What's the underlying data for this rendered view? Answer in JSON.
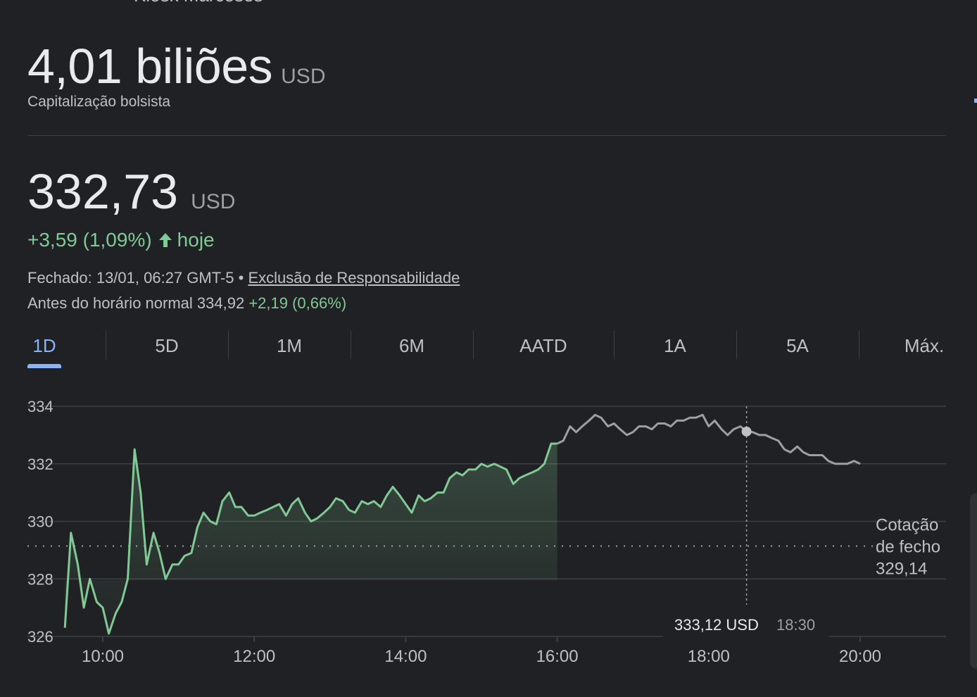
{
  "header": {
    "top_clipped_text": "Kiosk Marcoses"
  },
  "market_cap": {
    "value": "4,01 biliões",
    "unit": "USD",
    "label": "Capitalização bolsista"
  },
  "price": {
    "value": "332,73",
    "unit": "USD",
    "change": "+3,59 (1,09%)",
    "change_suffix": "hoje",
    "change_color": "#81c995",
    "closed_prefix": "Fechado: 13/01, 06:27 GMT-5 •",
    "disclaimer_link": "Exclusão de Responsabilidade",
    "premarket_label": "Antes do horário normal 334,92",
    "premarket_change": "+2,19 (0,66%)"
  },
  "tabs": [
    {
      "label": "1D",
      "active": true
    },
    {
      "label": "5D",
      "active": false
    },
    {
      "label": "1M",
      "active": false
    },
    {
      "label": "6M",
      "active": false
    },
    {
      "label": "AATD",
      "active": false
    },
    {
      "label": "1A",
      "active": false
    },
    {
      "label": "5A",
      "active": false
    },
    {
      "label": "Máx.",
      "active": false
    }
  ],
  "chart_data": {
    "type": "line",
    "x_tick_labels": [
      "10:00",
      "12:00",
      "14:00",
      "16:00",
      "18:00",
      "20:00"
    ],
    "y_ticks": [
      326,
      328,
      330,
      332,
      334
    ],
    "ylim": [
      326,
      334
    ],
    "xlim_hours": [
      9.5,
      21.2
    ],
    "grid": true,
    "reference_line": {
      "label": [
        "Cotação",
        "de fecho",
        "329,14"
      ],
      "value": 329.14
    },
    "tooltip": {
      "value": "333,12 USD",
      "time": "18:30",
      "x": 18.5,
      "y": 333.12
    },
    "colors": {
      "regular": "#81c995",
      "after_hours": "#9aa0a6",
      "grid": "#3c4043"
    },
    "series": [
      {
        "segment": "regular",
        "points": [
          [
            9.5,
            326.3
          ],
          [
            9.58,
            329.6
          ],
          [
            9.67,
            328.5
          ],
          [
            9.75,
            327.0
          ],
          [
            9.83,
            328.0
          ],
          [
            9.92,
            327.2
          ],
          [
            10.0,
            327.0
          ],
          [
            10.08,
            326.1
          ],
          [
            10.17,
            326.8
          ],
          [
            10.25,
            327.2
          ],
          [
            10.33,
            328.0
          ],
          [
            10.42,
            332.5
          ],
          [
            10.5,
            331.0
          ],
          [
            10.58,
            328.5
          ],
          [
            10.67,
            329.6
          ],
          [
            10.75,
            328.9
          ],
          [
            10.83,
            328.0
          ],
          [
            10.92,
            328.5
          ],
          [
            11.0,
            328.5
          ],
          [
            11.08,
            328.8
          ],
          [
            11.17,
            328.9
          ],
          [
            11.25,
            329.8
          ],
          [
            11.33,
            330.3
          ],
          [
            11.42,
            330.0
          ],
          [
            11.5,
            329.9
          ],
          [
            11.58,
            330.7
          ],
          [
            11.67,
            331.0
          ],
          [
            11.75,
            330.5
          ],
          [
            11.83,
            330.5
          ],
          [
            11.92,
            330.2
          ],
          [
            12.0,
            330.2
          ],
          [
            12.08,
            330.3
          ],
          [
            12.17,
            330.4
          ],
          [
            12.25,
            330.5
          ],
          [
            12.33,
            330.6
          ],
          [
            12.42,
            330.2
          ],
          [
            12.5,
            330.6
          ],
          [
            12.58,
            330.8
          ],
          [
            12.67,
            330.3
          ],
          [
            12.75,
            330.0
          ],
          [
            12.83,
            330.1
          ],
          [
            12.92,
            330.3
          ],
          [
            13.0,
            330.5
          ],
          [
            13.08,
            330.8
          ],
          [
            13.17,
            330.7
          ],
          [
            13.25,
            330.4
          ],
          [
            13.33,
            330.3
          ],
          [
            13.42,
            330.7
          ],
          [
            13.5,
            330.6
          ],
          [
            13.58,
            330.7
          ],
          [
            13.67,
            330.5
          ],
          [
            13.75,
            330.9
          ],
          [
            13.83,
            331.2
          ],
          [
            13.92,
            330.9
          ],
          [
            14.0,
            330.6
          ],
          [
            14.08,
            330.3
          ],
          [
            14.17,
            330.9
          ],
          [
            14.25,
            330.7
          ],
          [
            14.33,
            330.8
          ],
          [
            14.42,
            331.0
          ],
          [
            14.5,
            331.0
          ],
          [
            14.58,
            331.5
          ],
          [
            14.67,
            331.7
          ],
          [
            14.75,
            331.6
          ],
          [
            14.83,
            331.8
          ],
          [
            14.92,
            331.8
          ],
          [
            15.0,
            332.0
          ],
          [
            15.08,
            331.9
          ],
          [
            15.17,
            332.0
          ],
          [
            15.25,
            331.9
          ],
          [
            15.33,
            331.8
          ],
          [
            15.42,
            331.3
          ],
          [
            15.5,
            331.5
          ],
          [
            15.58,
            331.6
          ],
          [
            15.67,
            331.7
          ],
          [
            15.75,
            331.8
          ],
          [
            15.83,
            332.0
          ],
          [
            15.92,
            332.7
          ],
          [
            16.0,
            332.7
          ]
        ]
      },
      {
        "segment": "after_hours",
        "points": [
          [
            16.0,
            332.7
          ],
          [
            16.08,
            332.8
          ],
          [
            16.17,
            333.3
          ],
          [
            16.25,
            333.1
          ],
          [
            16.33,
            333.3
          ],
          [
            16.42,
            333.5
          ],
          [
            16.5,
            333.7
          ],
          [
            16.58,
            333.6
          ],
          [
            16.67,
            333.3
          ],
          [
            16.75,
            333.4
          ],
          [
            16.83,
            333.2
          ],
          [
            16.92,
            333.0
          ],
          [
            17.0,
            333.1
          ],
          [
            17.08,
            333.3
          ],
          [
            17.17,
            333.3
          ],
          [
            17.25,
            333.2
          ],
          [
            17.33,
            333.4
          ],
          [
            17.42,
            333.4
          ],
          [
            17.5,
            333.3
          ],
          [
            17.58,
            333.5
          ],
          [
            17.67,
            333.5
          ],
          [
            17.75,
            333.6
          ],
          [
            17.83,
            333.6
          ],
          [
            17.92,
            333.7
          ],
          [
            18.0,
            333.3
          ],
          [
            18.08,
            333.5
          ],
          [
            18.17,
            333.2
          ],
          [
            18.25,
            333.0
          ],
          [
            18.33,
            333.2
          ],
          [
            18.42,
            333.3
          ],
          [
            18.5,
            333.12
          ],
          [
            18.58,
            333.1
          ],
          [
            18.67,
            333.0
          ],
          [
            18.75,
            333.0
          ],
          [
            18.83,
            332.9
          ],
          [
            18.92,
            332.8
          ],
          [
            19.0,
            332.5
          ],
          [
            19.08,
            332.4
          ],
          [
            19.17,
            332.6
          ],
          [
            19.25,
            332.4
          ],
          [
            19.33,
            332.3
          ],
          [
            19.42,
            332.3
          ],
          [
            19.5,
            332.3
          ],
          [
            19.58,
            332.1
          ],
          [
            19.67,
            332.0
          ],
          [
            19.75,
            332.0
          ],
          [
            19.83,
            332.0
          ],
          [
            19.92,
            332.1
          ],
          [
            20.0,
            332.0
          ]
        ]
      }
    ]
  }
}
